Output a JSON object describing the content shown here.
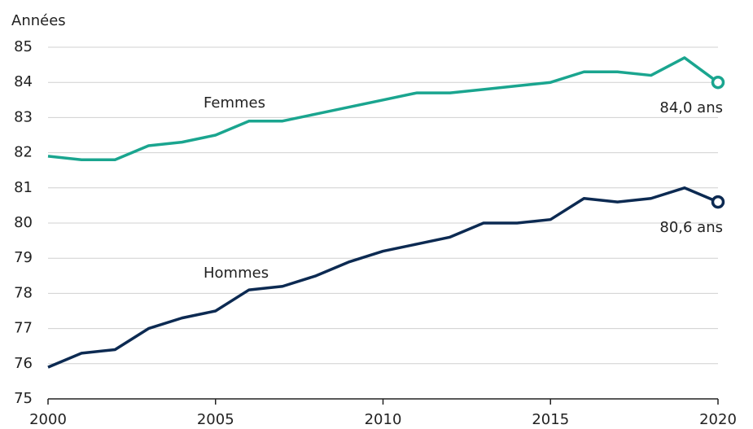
{
  "chart_data": {
    "type": "line",
    "y_label": "Années",
    "x": [
      2000,
      2001,
      2002,
      2003,
      2004,
      2005,
      2006,
      2007,
      2008,
      2009,
      2010,
      2011,
      2012,
      2013,
      2014,
      2015,
      2016,
      2017,
      2018,
      2019,
      2020
    ],
    "series": [
      {
        "name": "Femmes",
        "color": "#1aa58f",
        "values": [
          81.9,
          81.8,
          81.8,
          82.2,
          82.3,
          82.5,
          82.9,
          82.9,
          83.1,
          83.3,
          83.5,
          83.7,
          83.7,
          83.8,
          83.9,
          84.0,
          84.3,
          84.3,
          84.2,
          84.7,
          84.0
        ],
        "value_labels": [
          null,
          null,
          null,
          null,
          null,
          null,
          null,
          null,
          null,
          null,
          null,
          null,
          null,
          null,
          null,
          null,
          null,
          null,
          null,
          null,
          "84,0 ans"
        ]
      },
      {
        "name": "Hommes",
        "color": "#0c2a52",
        "values": [
          75.9,
          76.3,
          76.4,
          77.0,
          77.3,
          77.5,
          78.1,
          78.2,
          78.5,
          78.9,
          79.2,
          79.4,
          79.6,
          80.0,
          80.0,
          80.1,
          80.7,
          80.6,
          80.7,
          81.0,
          80.6
        ],
        "value_labels": [
          null,
          null,
          null,
          null,
          null,
          null,
          null,
          null,
          null,
          null,
          null,
          null,
          null,
          null,
          null,
          null,
          null,
          null,
          null,
          null,
          "80,6 ans"
        ]
      }
    ],
    "xlim": [
      2000,
      2020
    ],
    "xticks": [
      2000,
      2005,
      2010,
      2015,
      2020
    ],
    "ylim": [
      75,
      85
    ],
    "yticks": [
      75,
      76,
      77,
      78,
      79,
      80,
      81,
      82,
      83,
      84,
      85
    ],
    "grid": true
  }
}
